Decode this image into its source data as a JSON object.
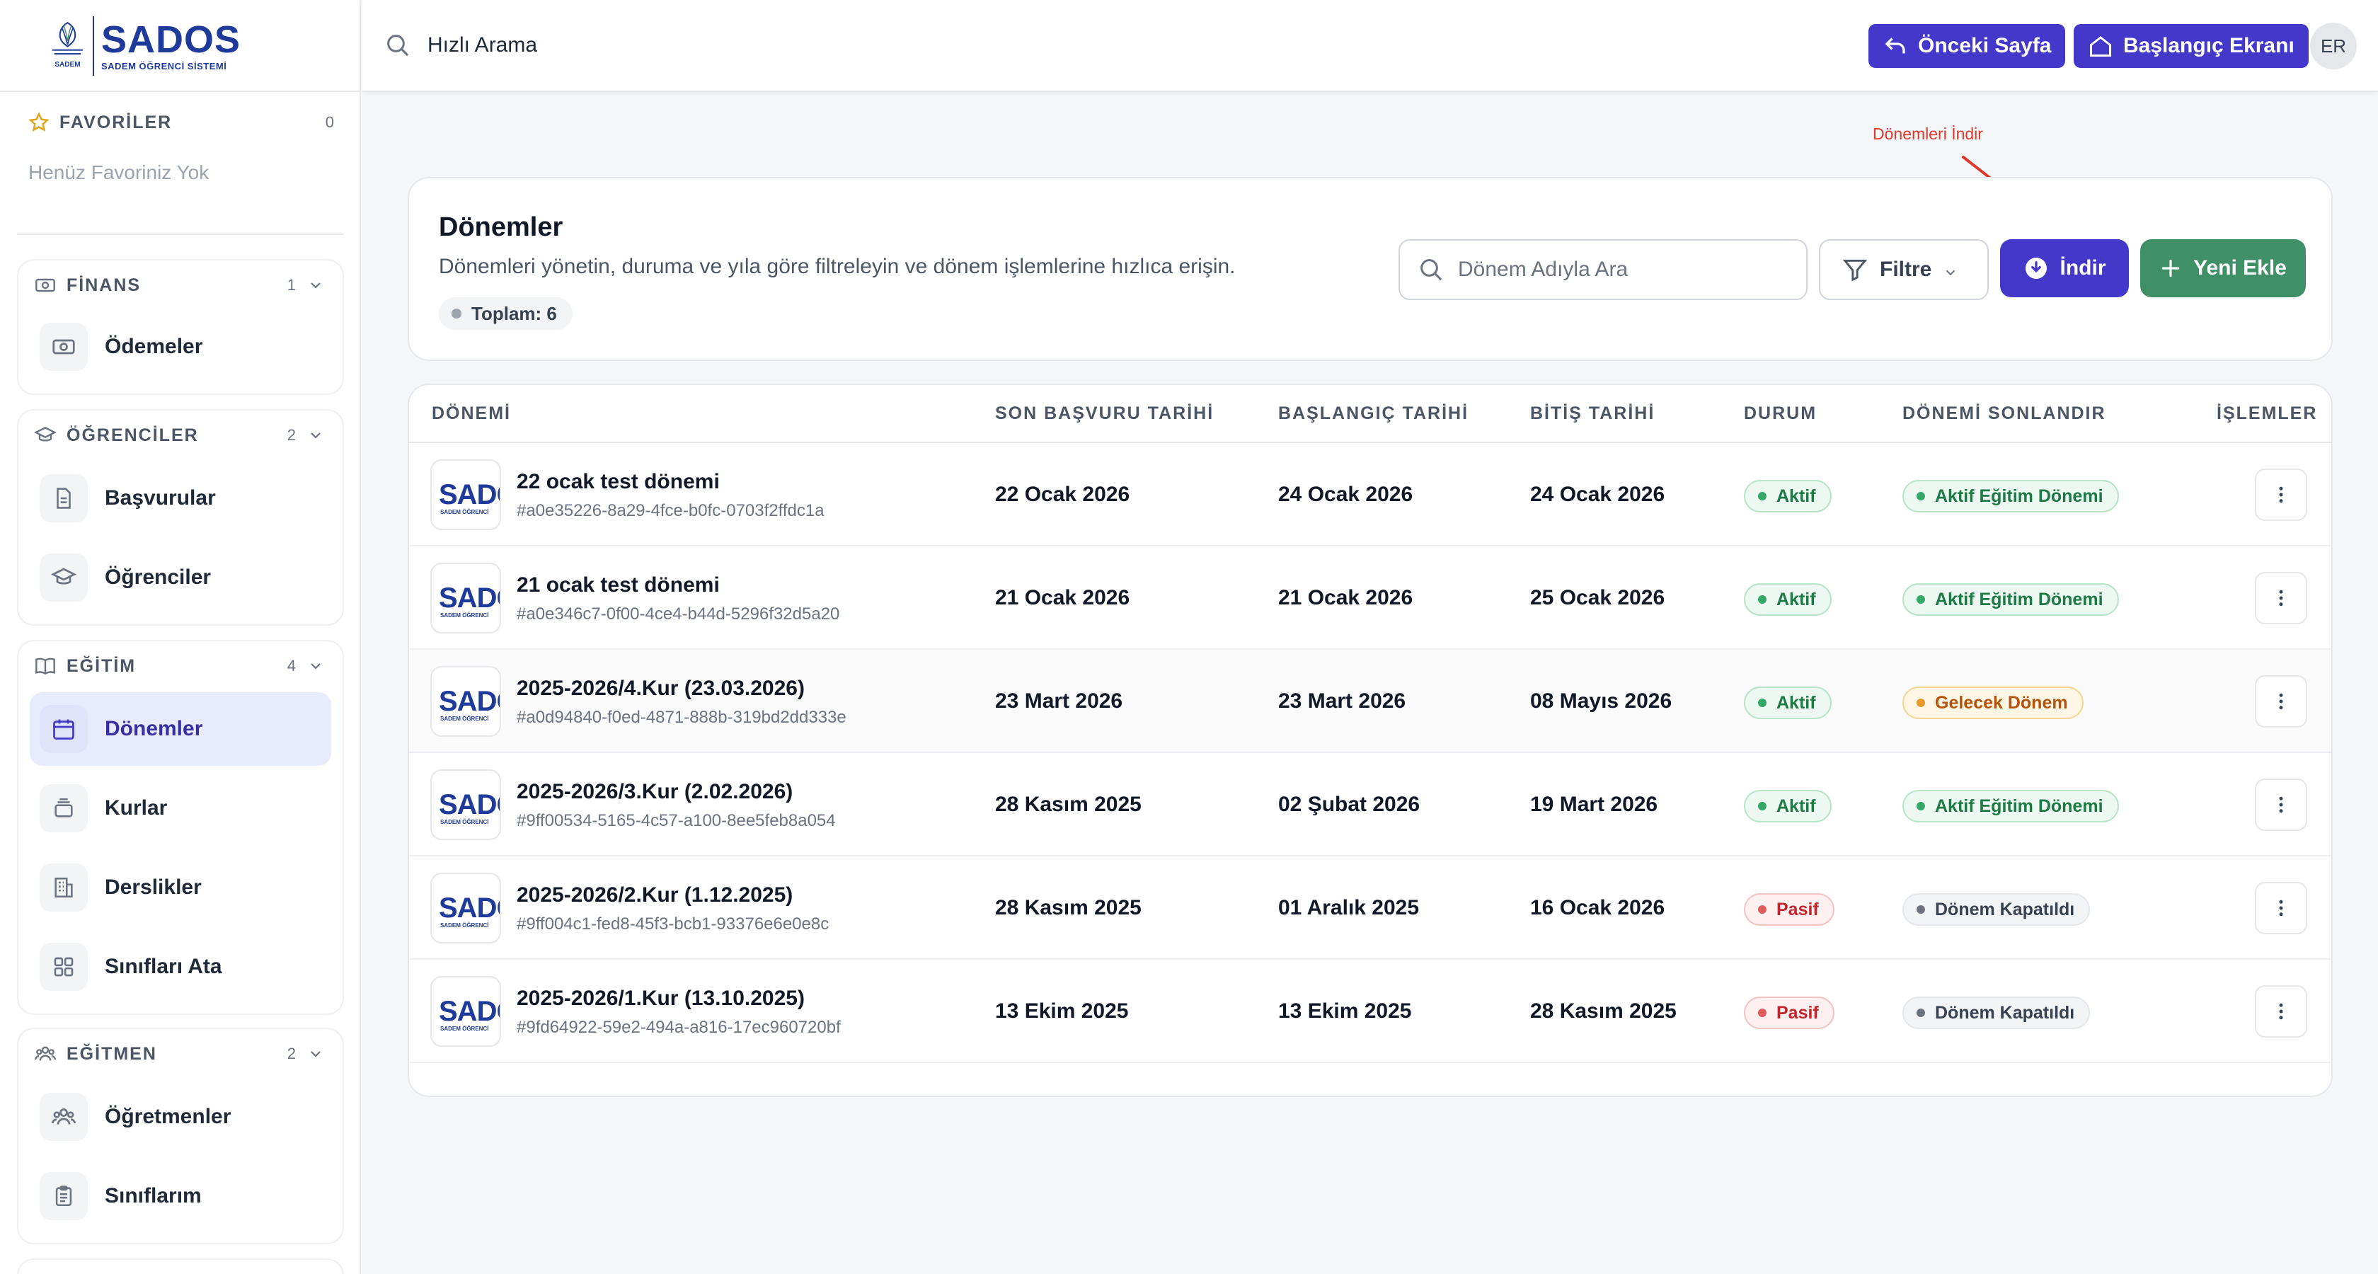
{
  "brand": {
    "title": "SADOS",
    "subtitle": "SADEM ÖĞRENCİ SİSTEMİ",
    "emblem_text": "SADEM"
  },
  "sidebar": {
    "favorites": {
      "label": "FAVORİLER",
      "count": "0",
      "empty_text": "Henüz Favoriniz Yok"
    },
    "groups": [
      {
        "label": "FİNANS",
        "count": "1",
        "icon": "money-icon",
        "items": [
          {
            "label": "Ödemeler",
            "icon": "money-icon"
          }
        ]
      },
      {
        "label": "ÖĞRENCİLER",
        "count": "2",
        "icon": "graduation-cap-icon",
        "items": [
          {
            "label": "Başvurular",
            "icon": "document-icon"
          },
          {
            "label": "Öğrenciler",
            "icon": "graduation-cap-icon"
          }
        ]
      },
      {
        "label": "EĞİTİM",
        "count": "4",
        "icon": "book-icon",
        "items": [
          {
            "label": "Dönemler",
            "icon": "calendar-icon",
            "active": true
          },
          {
            "label": "Kurlar",
            "icon": "layers-icon"
          },
          {
            "label": "Derslikler",
            "icon": "building-icon"
          },
          {
            "label": "Sınıfları Ata",
            "icon": "grid-icon"
          }
        ]
      },
      {
        "label": "EĞİTMEN",
        "count": "2",
        "icon": "users-icon",
        "items": [
          {
            "label": "Öğretmenler",
            "icon": "users-icon"
          },
          {
            "label": "Sınıflarım",
            "icon": "clipboard-icon"
          }
        ]
      }
    ]
  },
  "topbar": {
    "quick_search_label": "Hızlı Arama",
    "back_button": "Önceki Sayfa",
    "home_button": "Başlangıç Ekranı",
    "avatar_initials": "ER"
  },
  "annotation": {
    "text": "Dönemleri İndir",
    "color": "#e0392b"
  },
  "page": {
    "title": "Dönemler",
    "description": "Dönemleri yönetin, duruma ve yıla göre filtreleyin ve dönem işlemlerine hızlıca erişin.",
    "total_label": "Toplam: 6",
    "search_placeholder": "Dönem Adıyla Ara",
    "filter_button": "Filtre",
    "download_button": "İndir",
    "add_button": "Yeni Ekle"
  },
  "table": {
    "columns": [
      "DÖNEMİ",
      "SON BAŞVURU TARİHİ",
      "BAŞLANGIÇ TARİHİ",
      "BİTİŞ TARİHİ",
      "DURUM",
      "DÖNEMİ SONLANDIR",
      "İŞLEMLER"
    ],
    "thumb_text": "SADOS",
    "thumb_sub": "SADEM ÖĞRENCİ",
    "rows": [
      {
        "name": "22 ocak test dönemi",
        "id": "#a0e35226-8a29-4fce-b0fc-0703f2ffdc1a",
        "deadline": "22 Ocak 2026",
        "start": "24 Ocak 2026",
        "end": "24 Ocak 2026",
        "status": "Aktif",
        "status_tone": "green",
        "phase": "Aktif Eğitim Dönemi",
        "phase_tone": "green"
      },
      {
        "name": "21 ocak test dönemi",
        "id": "#a0e346c7-0f00-4ce4-b44d-5296f32d5a20",
        "deadline": "21 Ocak 2026",
        "start": "21 Ocak 2026",
        "end": "25 Ocak 2026",
        "status": "Aktif",
        "status_tone": "green",
        "phase": "Aktif Eğitim Dönemi",
        "phase_tone": "green"
      },
      {
        "name": "2025-2026/4.Kur (23.03.2026)",
        "id": "#a0d94840-f0ed-4871-888b-319bd2dd333e",
        "deadline": "23 Mart 2026",
        "start": "23 Mart 2026",
        "end": "08 Mayıs 2026",
        "status": "Aktif",
        "status_tone": "green",
        "phase": "Gelecek Dönem",
        "phase_tone": "orange"
      },
      {
        "name": "2025-2026/3.Kur (2.02.2026)",
        "id": "#9ff00534-5165-4c57-a100-8ee5feb8a054",
        "deadline": "28 Kasım 2025",
        "start": "02 Şubat 2026",
        "end": "19 Mart 2026",
        "status": "Aktif",
        "status_tone": "green",
        "phase": "Aktif Eğitim Dönemi",
        "phase_tone": "green"
      },
      {
        "name": "2025-2026/2.Kur (1.12.2025)",
        "id": "#9ff004c1-fed8-45f3-bcb1-93376e6e0e8c",
        "deadline": "28 Kasım 2025",
        "start": "01 Aralık 2025",
        "end": "16 Ocak 2026",
        "status": "Pasif",
        "status_tone": "red",
        "phase": "Dönem Kapatıldı",
        "phase_tone": "gray"
      },
      {
        "name": "2025-2026/1.Kur (13.10.2025)",
        "id": "#9fd64922-59e2-494a-a816-17ec960720bf",
        "deadline": "13 Ekim 2025",
        "start": "13 Ekim 2025",
        "end": "28 Kasım 2025",
        "status": "Pasif",
        "status_tone": "red",
        "phase": "Dönem Kapatıldı",
        "phase_tone": "gray"
      }
    ]
  },
  "colors": {
    "primary": "#4338ca",
    "success": "#3f8f67",
    "brand": "#1e3a9a"
  }
}
